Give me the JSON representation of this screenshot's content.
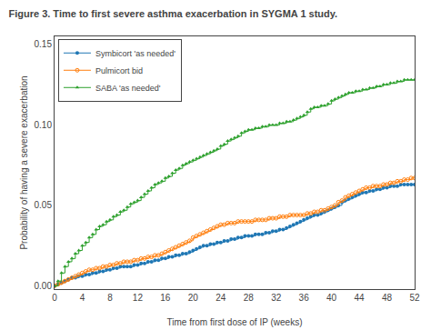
{
  "chart_data": {
    "type": "step",
    "title": "Figure 3. Time to first severe asthma exacerbation in SYGMA 1 study.",
    "xlabel": "Time from first dose of IP (weeks)",
    "ylabel": "Probability of having a severe exacerbation",
    "x": [
      0,
      0.5,
      1,
      1.5,
      2,
      2.5,
      3,
      3.5,
      4,
      4.5,
      5,
      5.5,
      6,
      6.5,
      7,
      7.5,
      8,
      8.5,
      9,
      9.5,
      10,
      10.5,
      11,
      11.5,
      12,
      12.5,
      13,
      13.5,
      14,
      14.5,
      15,
      15.5,
      16,
      16.5,
      17,
      17.5,
      18,
      18.5,
      19,
      19.5,
      20,
      20.5,
      21,
      21.5,
      22,
      22.5,
      23,
      23.5,
      24,
      24.5,
      25,
      25.5,
      26,
      26.5,
      27,
      27.5,
      28,
      28.5,
      29,
      29.5,
      30,
      30.5,
      31,
      31.5,
      32,
      32.5,
      33,
      33.5,
      34,
      34.5,
      35,
      35.5,
      36,
      36.5,
      37,
      37.5,
      38,
      38.5,
      39,
      39.5,
      40,
      40.5,
      41,
      41.5,
      42,
      42.5,
      43,
      43.5,
      44,
      44.5,
      45,
      45.5,
      46,
      46.5,
      47,
      47.5,
      48,
      48.5,
      49,
      49.5,
      50,
      50.5,
      51,
      51.5,
      52
    ],
    "series": [
      {
        "name": "Symbicort 'as needed'",
        "marker": "circle",
        "values": [
          0.0,
          0.001,
          0.002,
          0.003,
          0.004,
          0.005,
          0.005,
          0.006,
          0.006,
          0.007,
          0.007,
          0.008,
          0.008,
          0.009,
          0.009,
          0.01,
          0.01,
          0.011,
          0.011,
          0.012,
          0.012,
          0.012,
          0.012,
          0.013,
          0.013,
          0.014,
          0.014,
          0.015,
          0.015,
          0.016,
          0.016,
          0.017,
          0.017,
          0.018,
          0.018,
          0.019,
          0.019,
          0.02,
          0.02,
          0.021,
          0.022,
          0.023,
          0.024,
          0.025,
          0.025,
          0.026,
          0.026,
          0.027,
          0.027,
          0.028,
          0.028,
          0.029,
          0.029,
          0.03,
          0.03,
          0.031,
          0.031,
          0.031,
          0.032,
          0.032,
          0.032,
          0.033,
          0.033,
          0.034,
          0.034,
          0.035,
          0.035,
          0.036,
          0.037,
          0.038,
          0.039,
          0.04,
          0.041,
          0.042,
          0.043,
          0.044,
          0.044,
          0.045,
          0.046,
          0.047,
          0.048,
          0.049,
          0.05,
          0.052,
          0.053,
          0.054,
          0.055,
          0.056,
          0.057,
          0.058,
          0.058,
          0.059,
          0.059,
          0.06,
          0.06,
          0.061,
          0.061,
          0.062,
          0.062,
          0.062,
          0.063,
          0.063,
          0.063,
          0.063,
          0.063
        ]
      },
      {
        "name": "Pulmicort bid",
        "marker": "circle-open",
        "values": [
          0.0,
          0.001,
          0.002,
          0.003,
          0.004,
          0.005,
          0.006,
          0.007,
          0.008,
          0.009,
          0.01,
          0.01,
          0.011,
          0.011,
          0.012,
          0.012,
          0.013,
          0.013,
          0.014,
          0.014,
          0.015,
          0.015,
          0.015,
          0.016,
          0.016,
          0.017,
          0.017,
          0.018,
          0.018,
          0.019,
          0.019,
          0.02,
          0.021,
          0.022,
          0.023,
          0.024,
          0.025,
          0.026,
          0.027,
          0.028,
          0.03,
          0.031,
          0.032,
          0.033,
          0.034,
          0.035,
          0.036,
          0.037,
          0.038,
          0.038,
          0.039,
          0.039,
          0.039,
          0.04,
          0.04,
          0.04,
          0.04,
          0.04,
          0.041,
          0.041,
          0.041,
          0.041,
          0.042,
          0.042,
          0.042,
          0.043,
          0.043,
          0.043,
          0.044,
          0.044,
          0.044,
          0.044,
          0.044,
          0.045,
          0.045,
          0.046,
          0.046,
          0.047,
          0.047,
          0.048,
          0.049,
          0.05,
          0.052,
          0.053,
          0.055,
          0.056,
          0.057,
          0.058,
          0.059,
          0.06,
          0.061,
          0.061,
          0.062,
          0.062,
          0.062,
          0.063,
          0.063,
          0.064,
          0.064,
          0.065,
          0.065,
          0.066,
          0.066,
          0.067,
          0.067
        ]
      },
      {
        "name": "SABA 'as needed'",
        "marker": "triangle-up",
        "values": [
          0.0,
          0.003,
          0.008,
          0.012,
          0.015,
          0.017,
          0.02,
          0.022,
          0.025,
          0.027,
          0.03,
          0.032,
          0.035,
          0.037,
          0.038,
          0.04,
          0.041,
          0.043,
          0.044,
          0.046,
          0.047,
          0.049,
          0.051,
          0.052,
          0.053,
          0.055,
          0.057,
          0.059,
          0.061,
          0.063,
          0.064,
          0.065,
          0.067,
          0.068,
          0.07,
          0.072,
          0.073,
          0.075,
          0.076,
          0.077,
          0.078,
          0.079,
          0.08,
          0.081,
          0.082,
          0.083,
          0.084,
          0.085,
          0.087,
          0.088,
          0.09,
          0.091,
          0.092,
          0.093,
          0.095,
          0.096,
          0.097,
          0.097,
          0.098,
          0.098,
          0.099,
          0.099,
          0.1,
          0.1,
          0.1,
          0.101,
          0.101,
          0.102,
          0.102,
          0.103,
          0.104,
          0.105,
          0.106,
          0.108,
          0.11,
          0.111,
          0.111,
          0.112,
          0.112,
          0.113,
          0.115,
          0.116,
          0.117,
          0.118,
          0.119,
          0.12,
          0.12,
          0.121,
          0.121,
          0.122,
          0.122,
          0.123,
          0.123,
          0.124,
          0.124,
          0.125,
          0.125,
          0.126,
          0.126,
          0.127,
          0.127,
          0.128,
          0.128,
          0.128,
          0.128
        ]
      }
    ],
    "xlim": [
      0,
      52
    ],
    "ylim": [
      -0.002,
      0.155
    ],
    "xticks": [
      0,
      4,
      8,
      12,
      16,
      20,
      24,
      28,
      32,
      36,
      40,
      44,
      48,
      52
    ],
    "yticks": [
      {
        "value": 0,
        "label": "0.00"
      },
      0.05,
      {
        "value": 0.1,
        "label": "0.10"
      },
      0.15
    ],
    "grid": false,
    "legend": "upper left"
  }
}
